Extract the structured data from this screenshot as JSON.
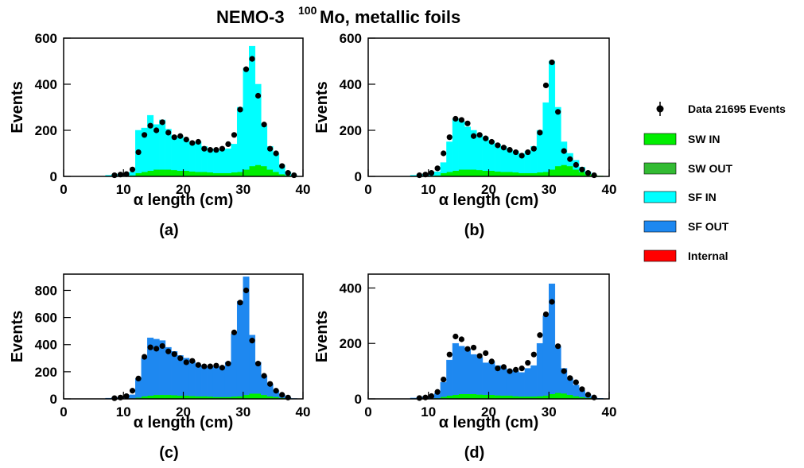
{
  "title": "NEMO-3",
  "title_sup": "100",
  "title_rest": "Mo, metallic foils",
  "legend": [
    {
      "name": "Data 21695 Events",
      "color": "#000000",
      "marker": true
    },
    {
      "name": "SW IN",
      "color": "#00ee00"
    },
    {
      "name": "SW OUT",
      "color": "#33bb33"
    },
    {
      "name": "SF IN",
      "color": "#00ffff"
    },
    {
      "name": "SF OUT",
      "color": "#1e88f0"
    },
    {
      "name": "Internal",
      "color": "#ff0000"
    }
  ],
  "chart_data": [
    {
      "type": "histogram",
      "caption": "(a)",
      "xlabel": "α length (cm)",
      "ylabel": "Events",
      "bins": [
        7,
        8,
        9,
        10,
        11,
        12,
        13,
        14,
        15,
        16,
        17,
        18,
        19,
        20,
        21,
        22,
        23,
        24,
        25,
        26,
        27,
        28,
        29,
        30,
        31,
        32,
        33,
        34,
        35,
        36,
        37,
        38,
        39
      ],
      "xlim": [
        0,
        40
      ],
      "xticks": [
        0,
        10,
        20,
        30,
        40
      ],
      "ylim": [
        0,
        600
      ],
      "yticks": [
        0,
        200,
        400,
        600
      ],
      "series": [
        {
          "name": "SW IN",
          "color": "#00ee00",
          "values": [
            0,
            1,
            2,
            3,
            5,
            15,
            20,
            25,
            30,
            30,
            30,
            28,
            25,
            25,
            22,
            20,
            20,
            18,
            15,
            15,
            15,
            18,
            20,
            30,
            45,
            50,
            45,
            30,
            20,
            10,
            5,
            2
          ]
        },
        {
          "name": "SF IN",
          "color": "#00ffff",
          "values": [
            5,
            7,
            8,
            9,
            15,
            185,
            190,
            240,
            195,
            215,
            175,
            142,
            150,
            135,
            128,
            130,
            110,
            102,
            100,
            100,
            105,
            122,
            280,
            440,
            520,
            350,
            175,
            100,
            80,
            40,
            15,
            3
          ]
        }
      ],
      "points": {
        "name": "Data 21695 Events",
        "values": [
          null,
          5,
          8,
          10,
          30,
          105,
          180,
          220,
          200,
          235,
          190,
          170,
          175,
          160,
          145,
          150,
          120,
          115,
          115,
          120,
          140,
          180,
          290,
          465,
          510,
          350,
          225,
          120,
          100,
          45,
          15,
          5
        ]
      }
    },
    {
      "type": "histogram",
      "caption": "(b)",
      "xlabel": "α length (cm)",
      "ylabel": "Events",
      "bins": [
        7,
        8,
        9,
        10,
        11,
        12,
        13,
        14,
        15,
        16,
        17,
        18,
        19,
        20,
        21,
        22,
        23,
        24,
        25,
        26,
        27,
        28,
        29,
        30,
        31,
        32,
        33,
        34,
        35,
        36,
        37,
        38,
        39
      ],
      "xlim": [
        0,
        40
      ],
      "xticks": [
        0,
        10,
        20,
        30,
        40
      ],
      "ylim": [
        0,
        600
      ],
      "yticks": [
        0,
        200,
        400,
        600
      ],
      "series": [
        {
          "name": "SW IN",
          "color": "#00ee00",
          "values": [
            0,
            1,
            2,
            3,
            5,
            15,
            20,
            25,
            30,
            30,
            30,
            28,
            25,
            25,
            22,
            20,
            20,
            18,
            15,
            15,
            15,
            18,
            20,
            30,
            45,
            50,
            45,
            30,
            20,
            10,
            5,
            2
          ]
        },
        {
          "name": "SF IN",
          "color": "#00ffff",
          "values": [
            5,
            7,
            8,
            9,
            15,
            45,
            130,
            225,
            210,
            185,
            170,
            152,
            145,
            130,
            118,
            110,
            95,
            92,
            85,
            95,
            115,
            182,
            300,
            470,
            255,
            100,
            55,
            40,
            20,
            10,
            0,
            0
          ]
        }
      ],
      "points": {
        "name": "Data 21695 Events",
        "values": [
          null,
          5,
          8,
          15,
          35,
          100,
          170,
          250,
          245,
          230,
          175,
          180,
          165,
          150,
          135,
          125,
          115,
          105,
          90,
          105,
          120,
          190,
          395,
          495,
          280,
          110,
          75,
          50,
          30,
          15,
          5,
          null
        ]
      }
    },
    {
      "type": "histogram",
      "caption": "(c)",
      "xlabel": "α length (cm)",
      "ylabel": "Events",
      "bins": [
        7,
        8,
        9,
        10,
        11,
        12,
        13,
        14,
        15,
        16,
        17,
        18,
        19,
        20,
        21,
        22,
        23,
        24,
        25,
        26,
        27,
        28,
        29,
        30,
        31,
        32,
        33,
        34,
        35,
        36,
        37,
        38,
        39
      ],
      "xlim": [
        0,
        40
      ],
      "xticks": [
        0,
        10,
        20,
        30,
        40
      ],
      "ylim": [
        0,
        920
      ],
      "yticks": [
        0,
        200,
        400,
        600,
        800
      ],
      "series": [
        {
          "name": "SW IN",
          "color": "#00ee00",
          "values": [
            0,
            1,
            2,
            3,
            5,
            10,
            20,
            25,
            30,
            30,
            30,
            28,
            25,
            25,
            22,
            20,
            20,
            18,
            15,
            15,
            15,
            18,
            20,
            30,
            40,
            40,
            30,
            20,
            15,
            8,
            3,
            1
          ]
        },
        {
          "name": "SF OUT",
          "color": "#1e88f0",
          "values": [
            5,
            7,
            8,
            12,
            25,
            140,
            280,
            425,
            410,
            400,
            350,
            322,
            295,
            275,
            258,
            230,
            220,
            222,
            220,
            225,
            255,
            462,
            700,
            870,
            430,
            230,
            140,
            90,
            45,
            22,
            7,
            2
          ]
        }
      ],
      "points": {
        "name": "Data 21695 Events",
        "values": [
          null,
          5,
          10,
          20,
          60,
          150,
          310,
          380,
          370,
          390,
          350,
          330,
          300,
          270,
          280,
          250,
          240,
          240,
          245,
          230,
          260,
          490,
          710,
          800,
          430,
          260,
          170,
          110,
          60,
          30,
          10,
          null
        ]
      }
    },
    {
      "type": "histogram",
      "caption": "(d)",
      "xlabel": "α length (cm)",
      "ylabel": "Events",
      "bins": [
        7,
        8,
        9,
        10,
        11,
        12,
        13,
        14,
        15,
        16,
        17,
        18,
        19,
        20,
        21,
        22,
        23,
        24,
        25,
        26,
        27,
        28,
        29,
        30,
        31,
        32,
        33,
        34,
        35,
        36,
        37,
        38,
        39
      ],
      "xlim": [
        0,
        40
      ],
      "xticks": [
        0,
        10,
        20,
        30,
        40
      ],
      "ylim": [
        0,
        450
      ],
      "yticks": [
        0,
        200,
        400
      ],
      "series": [
        {
          "name": "SW IN",
          "color": "#00ee00",
          "values": [
            0,
            1,
            1,
            2,
            3,
            8,
            12,
            15,
            18,
            18,
            18,
            16,
            15,
            15,
            13,
            12,
            12,
            10,
            9,
            9,
            9,
            10,
            12,
            18,
            22,
            20,
            15,
            10,
            7,
            4,
            2,
            1
          ]
        },
        {
          "name": "SF OUT",
          "color": "#1e88f0",
          "values": [
            3,
            4,
            7,
            8,
            17,
            52,
            128,
            185,
            172,
            162,
            142,
            134,
            115,
            120,
            107,
            98,
            93,
            90,
            86,
            101,
            111,
            190,
            288,
            397,
            168,
            90,
            60,
            40,
            23,
            11,
            3,
            1
          ]
        }
      ],
      "points": {
        "name": "Data 21695 Events",
        "values": [
          null,
          3,
          5,
          10,
          25,
          70,
          160,
          225,
          215,
          180,
          185,
          155,
          165,
          135,
          110,
          115,
          100,
          105,
          110,
          130,
          160,
          230,
          305,
          350,
          190,
          100,
          75,
          60,
          35,
          15,
          5,
          null
        ]
      }
    }
  ]
}
